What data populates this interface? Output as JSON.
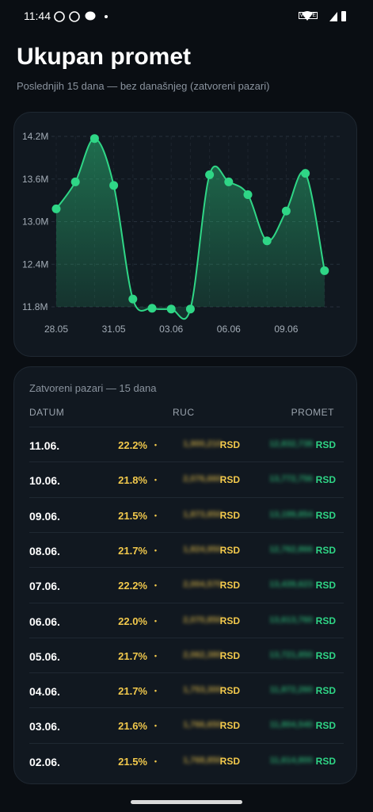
{
  "status_bar": {
    "time": "11:44",
    "network": "VoLTE"
  },
  "header": {
    "title": "Ukupan promet",
    "subtitle": "Poslednjih 15 dana — bez današnjeg (zatvoreni pazari)"
  },
  "chart_data": {
    "type": "area",
    "categories": [
      "28.05",
      null,
      null,
      "31.05",
      null,
      null,
      "03.06",
      null,
      null,
      "06.06",
      null,
      null,
      "09.06",
      null,
      null
    ],
    "values": [
      13.18,
      13.56,
      14.17,
      13.51,
      11.91,
      11.78,
      11.77,
      11.77,
      13.66,
      13.56,
      13.38,
      12.73,
      13.15,
      13.68,
      12.31
    ],
    "color": "#2fd686",
    "ylim": [
      11.8,
      14.2
    ],
    "yticks": [
      {
        "value": 11.8,
        "label": "11.8M"
      },
      {
        "value": 12.4,
        "label": "12.4M"
      },
      {
        "value": 13.0,
        "label": "13.0M"
      },
      {
        "value": 13.6,
        "label": "13.6M"
      },
      {
        "value": 14.2,
        "label": "14.2M"
      }
    ],
    "grid": true
  },
  "table": {
    "caption": "Zatvoreni pazari — 15 dana",
    "columns": [
      "DATUM",
      "RUC",
      "PROMET"
    ],
    "rows": [
      [
        "11.06.",
        "22.2%",
        "•",
        "1,900,210",
        "RSD",
        "12,832,738",
        "RSD"
      ],
      [
        "10.06.",
        "21.8%",
        "•",
        "2,076,660",
        "RSD",
        "13,772,756",
        "RSD"
      ],
      [
        "09.06.",
        "21.5%",
        "•",
        "1,873,850",
        "RSD",
        "13,199,854",
        "RSD"
      ],
      [
        "08.06.",
        "21.7%",
        "•",
        "1,824,950",
        "RSD",
        "12,762,866",
        "RSD"
      ],
      [
        "07.06.",
        "22.2%",
        "•",
        "2,004,570",
        "RSD",
        "13,439,623",
        "RSD"
      ],
      [
        "06.06.",
        "22.0%",
        "•",
        "2,070,850",
        "RSD",
        "13,613,760",
        "RSD"
      ],
      [
        "05.06.",
        "21.7%",
        "•",
        "2,062,380",
        "RSD",
        "13,721,850",
        "RSD"
      ],
      [
        "04.06.",
        "21.7%",
        "•",
        "1,753,300",
        "RSD",
        "11,872,260",
        "RSD"
      ],
      [
        "03.06.",
        "21.6%",
        "•",
        "1,766,650",
        "RSD",
        "11,804,540",
        "RSD"
      ],
      [
        "02.06.",
        "21.5%",
        "•",
        "1,768,850",
        "RSD",
        "11,614,800",
        "RSD"
      ]
    ]
  }
}
